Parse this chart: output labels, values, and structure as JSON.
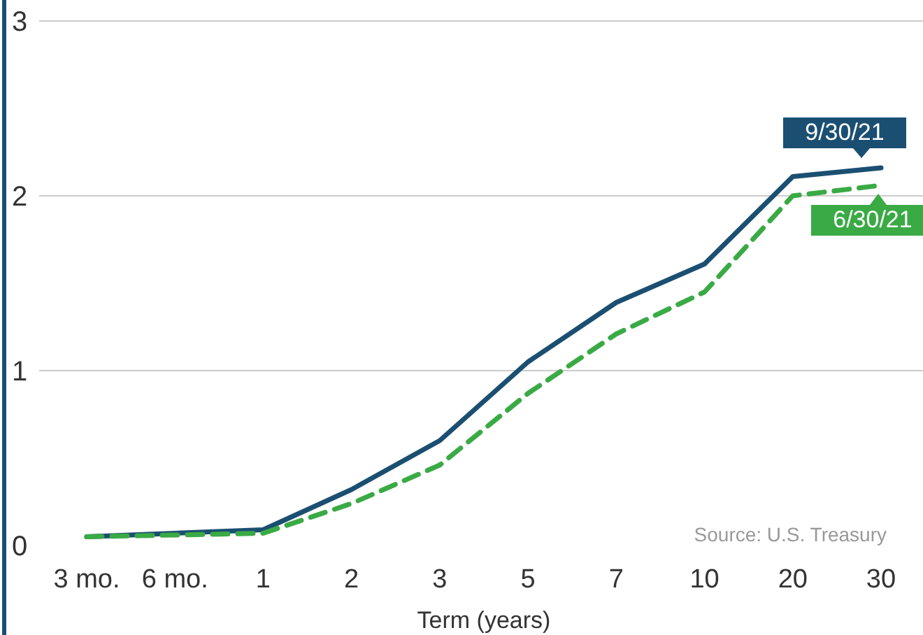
{
  "chart_data": {
    "type": "line",
    "xlabel": "Term (years)",
    "categories": [
      "3 mo.",
      "6 mo.",
      "1",
      "2",
      "3",
      "5",
      "7",
      "10",
      "20",
      "30"
    ],
    "series": [
      {
        "name": "9/30/21",
        "color": "#1b4f72",
        "line_style": "solid",
        "values": [
          0.05,
          0.07,
          0.09,
          0.32,
          0.6,
          1.05,
          1.39,
          1.61,
          2.11,
          2.16
        ]
      },
      {
        "name": "6/30/21",
        "color": "#3aaa45",
        "line_style": "dashed",
        "values": [
          0.05,
          0.06,
          0.07,
          0.24,
          0.46,
          0.87,
          1.21,
          1.45,
          2.0,
          2.06
        ]
      }
    ],
    "ylim": [
      0,
      3
    ],
    "yticks": [
      0,
      1,
      2,
      3
    ],
    "grid": "y",
    "legend": "right",
    "marker": "none",
    "annotations": [
      "Source: U.S. Treasury"
    ]
  }
}
